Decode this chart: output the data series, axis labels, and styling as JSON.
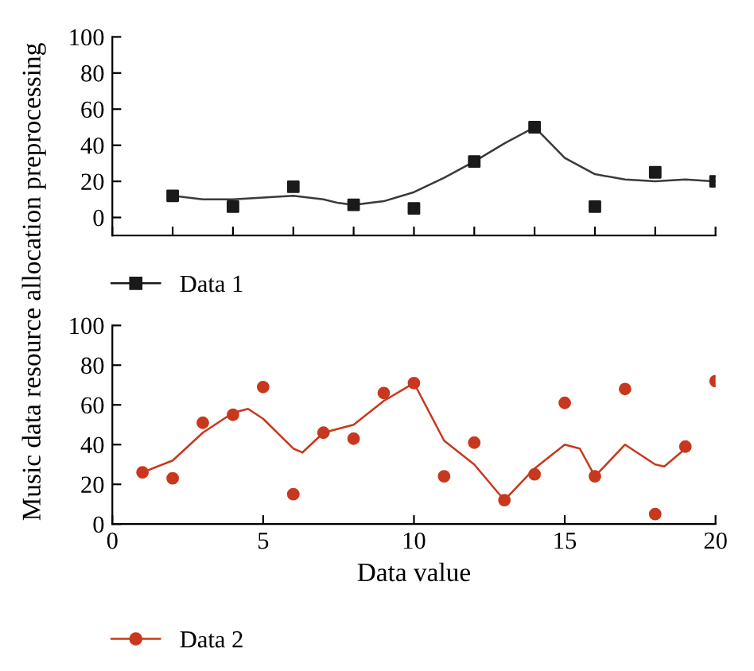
{
  "chart_data": [
    {
      "type": "scatter",
      "ylabel": "Music data resource allocation preprocessing",
      "xlim": [
        0,
        20
      ],
      "ylim": [
        -10,
        100
      ],
      "xticks": [
        {
          "value": 0,
          "label": null
        },
        {
          "value": 2,
          "label": null
        },
        {
          "value": 4,
          "label": null
        },
        {
          "value": 6,
          "label": null
        },
        {
          "value": 8,
          "label": null
        },
        {
          "value": 10,
          "label": null
        },
        {
          "value": 12,
          "label": null
        },
        {
          "value": 14,
          "label": null
        },
        {
          "value": 16,
          "label": null
        },
        {
          "value": 18,
          "label": null
        },
        {
          "value": 20,
          "label": null
        }
      ],
      "yticks": [
        0,
        20,
        40,
        60,
        80,
        100
      ],
      "tick_labels": "y",
      "grid": false,
      "legend": "bottom left",
      "series": [
        {
          "name": "Data 1",
          "color": "#1a1a1a",
          "marker": "square",
          "x": [
            2,
            4,
            6,
            8,
            10,
            12,
            14,
            16,
            18,
            20
          ],
          "values": [
            12,
            6,
            17,
            7,
            5,
            31,
            50,
            6,
            25,
            20
          ]
        },
        {
          "type": "line",
          "color": "#3a3a3a",
          "x": [
            2,
            3,
            4,
            5,
            6,
            7,
            7.5,
            8,
            9,
            10,
            11,
            12,
            13,
            14,
            15,
            16,
            17,
            18,
            19,
            20
          ],
          "values": [
            12,
            10,
            10,
            11,
            12,
            10,
            8,
            7,
            9,
            14,
            22,
            31,
            41,
            50,
            33,
            24,
            21,
            20,
            21,
            20
          ]
        }
      ]
    },
    {
      "type": "scatter",
      "xlabel": "Data value",
      "xlim": [
        0,
        20
      ],
      "ylim": [
        0,
        100
      ],
      "xticks": [
        0,
        5,
        10,
        15,
        20
      ],
      "yticks": [
        0,
        20,
        40,
        60,
        80,
        100
      ],
      "grid": false,
      "legend": "bottom left",
      "series": [
        {
          "name": "Data 2",
          "color": "#c8381e",
          "marker": "circle",
          "x": [
            1,
            2,
            3,
            4,
            5,
            6,
            7,
            8,
            9,
            10,
            11,
            12,
            13,
            14,
            15,
            16,
            17,
            18,
            19,
            20
          ],
          "values": [
            26,
            23,
            51,
            55,
            69,
            15,
            46,
            43,
            66,
            71,
            24,
            41,
            12,
            25,
            61,
            24,
            68,
            5,
            39,
            72
          ]
        },
        {
          "type": "line",
          "color": "#c8381e",
          "x": [
            1,
            2,
            3,
            4,
            4.5,
            5,
            6,
            6.3,
            7,
            8,
            9,
            10,
            11,
            12,
            13,
            14,
            15,
            15.5,
            16,
            17,
            18,
            18.3,
            19
          ],
          "values": [
            26,
            32,
            46,
            56,
            58,
            53,
            38,
            36,
            46,
            50,
            62,
            71,
            42,
            30,
            12,
            28,
            40,
            38,
            24,
            40,
            30,
            29,
            38
          ]
        }
      ]
    }
  ]
}
